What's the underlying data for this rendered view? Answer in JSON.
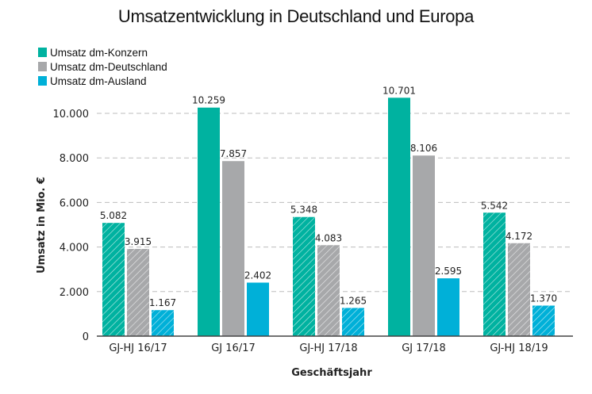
{
  "chart_data": {
    "type": "bar",
    "title": "Umsatzentwicklung in Deutschland und Europa",
    "xlabel": "Geschäftsjahr",
    "ylabel": "Umsatz in Mio. €",
    "ylim": [
      0,
      11000
    ],
    "yticks": [
      0,
      2000,
      4000,
      6000,
      8000,
      10000
    ],
    "ytick_labels": [
      "0",
      "2.000",
      "4.000",
      "6.000",
      "8.000",
      "10.000"
    ],
    "grid": true,
    "legend_position": "top-left",
    "categories": [
      "GJ-HJ 16/17",
      "GJ 16/17",
      "GJ-HJ 17/18",
      "GJ 17/18",
      "GJ-HJ 18/19"
    ],
    "hatched_categories": [
      true,
      false,
      true,
      false,
      true
    ],
    "series": [
      {
        "name": "Umsatz dm-Konzern",
        "color": "#00b2a0",
        "values": [
          5082,
          10259,
          5348,
          10701,
          5542
        ],
        "labels": [
          "5.082",
          "10.259",
          "5.348",
          "10.701",
          "5.542"
        ]
      },
      {
        "name": "Umsatz dm-Deutschland",
        "color": "#a7a8aa",
        "values": [
          3915,
          7857,
          4083,
          8106,
          4172
        ],
        "labels": [
          "3.915",
          "7.857",
          "4.083",
          "8.106",
          "4.172"
        ]
      },
      {
        "name": "Umsatz dm-Ausland",
        "color": "#00b0d8",
        "values": [
          1167,
          2402,
          1265,
          2595,
          1370
        ],
        "labels": [
          "1.167",
          "2.402",
          "1.265",
          "2.595",
          "1.370"
        ]
      }
    ]
  }
}
